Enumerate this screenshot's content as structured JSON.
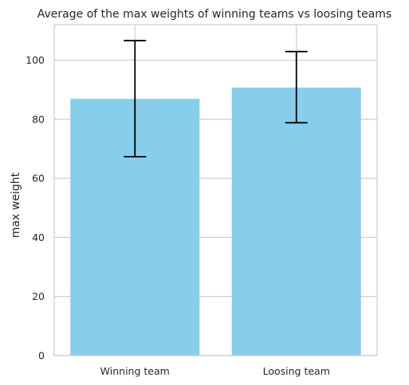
{
  "chart_data": {
    "type": "bar",
    "title": "Average of the max weights of winning teams vs loosing teams",
    "xlabel": "",
    "ylabel": "max weight",
    "categories": [
      "Winning team",
      "Loosing team"
    ],
    "values": [
      86.9,
      90.7
    ],
    "error_low": [
      67.3,
      78.8
    ],
    "error_high": [
      106.6,
      102.9
    ],
    "ylim": [
      0,
      112
    ],
    "yticks": [
      0,
      20,
      40,
      60,
      80,
      100
    ],
    "ytick_labels": [
      "0",
      "20",
      "40",
      "60",
      "80",
      "100"
    ],
    "grid": true,
    "bar_color": "#87CEEB",
    "error_color": "#000000",
    "grid_color": "#cccccc",
    "frame_color": "#cccccc"
  }
}
